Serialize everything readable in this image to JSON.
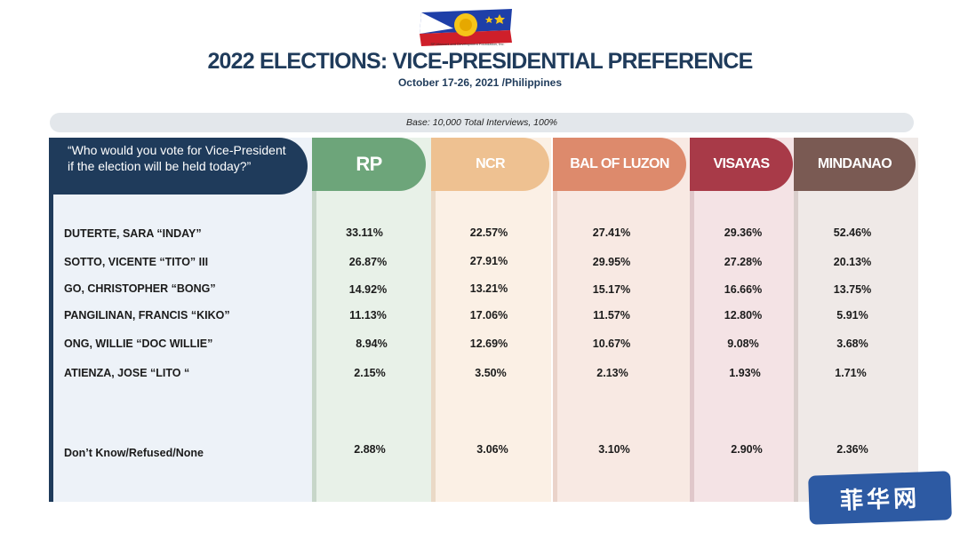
{
  "logo": {
    "caption": "SP-Marconi and Development Foundation, Inc."
  },
  "header": {
    "title": "2022 ELECTIONS: VICE-PRESIDENTIAL PREFERENCE",
    "subtitle": "October 17-26, 2021 /Philippines"
  },
  "base_note": "Base: 10,000 Total Interviews, 100%",
  "question": "“Who would you vote for Vice-President if the election will be held today?”",
  "colors": {
    "navy": "#1f3b5b",
    "rp": "#6da57a",
    "ncr": "#eec191",
    "bal_of_luzon": "#dd8a6c",
    "visayas": "#a83a48",
    "mindanao": "#7a5a53"
  },
  "columns": [
    "RP",
    "NCR",
    "BAL OF LUZON",
    "VISAYAS",
    "MINDANAO"
  ],
  "rows": [
    {
      "name": "DUTERTE, SARA “INDAY”",
      "values": [
        "33.11%",
        "22.57%",
        "27.41%",
        "29.36%",
        "52.46%"
      ]
    },
    {
      "name": "SOTTO, VICENTE “TITO” III",
      "values": [
        "26.87%",
        "27.91%",
        "29.95%",
        "27.28%",
        "20.13%"
      ]
    },
    {
      "name": "GO, CHRISTOPHER “BONG”",
      "values": [
        "14.92%",
        "13.21%",
        "15.17%",
        "16.66%",
        "13.75%"
      ]
    },
    {
      "name": "PANGILINAN, FRANCIS “KIKO”",
      "values": [
        "11.13%",
        "17.06%",
        "11.57%",
        "12.80%",
        "5.91%"
      ]
    },
    {
      "name": "ONG, WILLIE “DOC WILLIE”",
      "values": [
        "8.94%",
        "12.69%",
        "10.67%",
        "9.08%",
        "3.68%"
      ]
    },
    {
      "name": "ATIENZA, JOSE “LITO “",
      "values": [
        "2.15%",
        "3.50%",
        "2.13%",
        "1.93%",
        "1.71%"
      ]
    },
    {
      "name": "Don’t Know/Refused/None",
      "values": [
        "2.88%",
        "3.06%",
        "3.10%",
        "2.90%",
        "2.36%"
      ]
    }
  ],
  "watermark": "菲华网"
}
